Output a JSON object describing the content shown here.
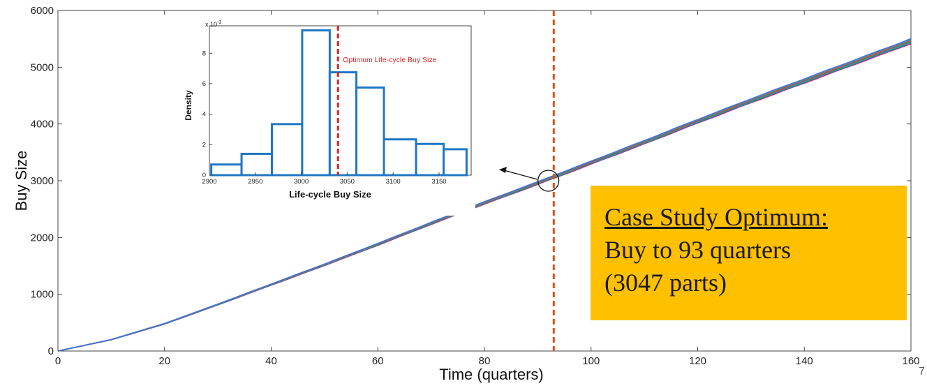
{
  "chart_data": [
    {
      "type": "line",
      "xlabel": "Time (quarters)",
      "ylabel": "Buy Size",
      "xlim": [
        0,
        160
      ],
      "ylim": [
        0,
        6000
      ],
      "xticks": [
        0,
        20,
        40,
        60,
        80,
        100,
        120,
        140,
        160
      ],
      "xtick_labels": [
        "0",
        "20",
        "40",
        "60",
        "80",
        "100",
        "120",
        "140",
        "160"
      ],
      "yticks": [
        0,
        1000,
        2000,
        3000,
        4000,
        5000,
        6000
      ],
      "ytick_labels": [
        "0",
        "1000",
        "2000",
        "3000",
        "4000",
        "5000",
        "6000"
      ],
      "grid": false,
      "series": [
        {
          "x": [
            0,
            10,
            20,
            30,
            40,
            50,
            60,
            70,
            80,
            90,
            100,
            110,
            120,
            130,
            140,
            150,
            160
          ],
          "y": [
            0,
            200,
            480,
            820,
            1170,
            1520,
            1880,
            2250,
            2610,
            2960,
            3320,
            3680,
            4050,
            4410,
            4760,
            5110,
            5460
          ]
        }
      ],
      "vline": {
        "x": 93,
        "color": "#d4541c",
        "style": "dashed"
      },
      "marker_circle": {
        "x": 92,
        "y": 3000
      }
    },
    {
      "type": "bar",
      "xlabel": "Life-cycle Buy Size",
      "ylabel": "Density",
      "scale_label": "x 10",
      "scale_exp": "-3",
      "xlim": [
        2900,
        3185
      ],
      "ylim": [
        0,
        9.8
      ],
      "xticks": [
        2900,
        2950,
        3000,
        3050,
        3100,
        3150
      ],
      "xtick_labels": [
        "2900",
        "2950",
        "3000",
        "3050",
        "3100",
        "3150"
      ],
      "yticks": [
        0,
        2,
        4,
        6,
        8
      ],
      "ytick_labels": [
        "0",
        "2",
        "4",
        "6",
        "8"
      ],
      "bin_edges": [
        2902,
        2935,
        2968,
        3001,
        3031,
        3060,
        3090,
        3125,
        3155,
        3180
      ],
      "values": [
        0.7,
        1.4,
        3.35,
        9.5,
        6.75,
        5.75,
        2.35,
        2.05,
        1.7
      ],
      "bar_color": "#1f77c4",
      "reference_line": {
        "x": 3040,
        "label": "Optimum Life-cycle Buy Size",
        "color": "#e02020"
      }
    }
  ],
  "callout": {
    "heading": "Case Study Optimum:",
    "line1": "Buy to 93 quarters",
    "line2": "(3047 parts)",
    "background": "#ffc000"
  },
  "page_number": "7"
}
